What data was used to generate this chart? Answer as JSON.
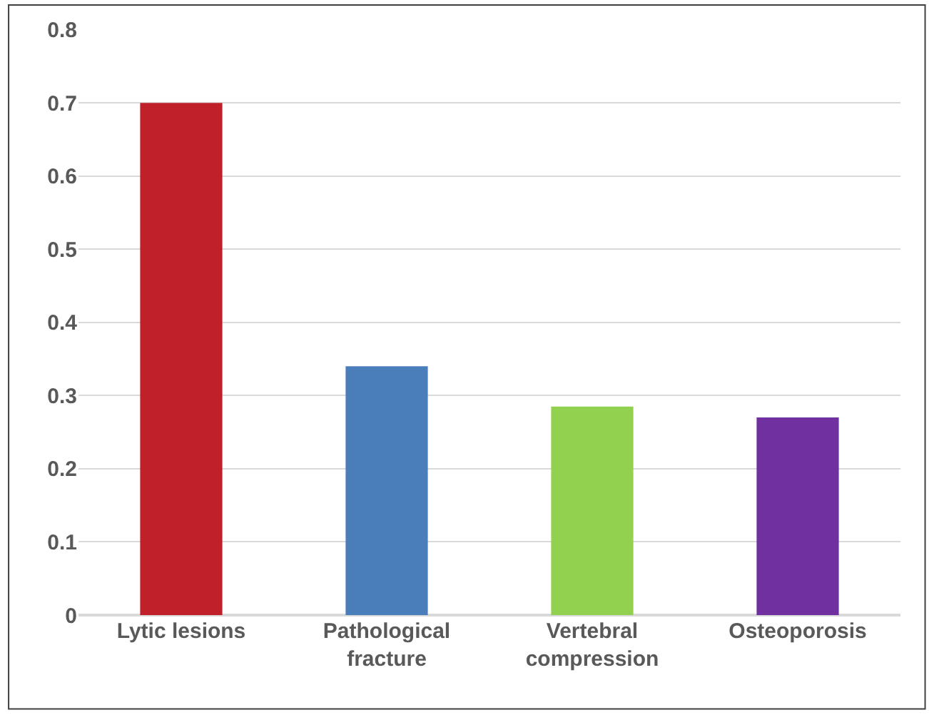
{
  "chart_data": {
    "type": "bar",
    "categories": [
      "Lytic lesions",
      "Pathological\nfracture",
      "Vertebral\ncompression",
      "Osteoporosis"
    ],
    "values": [
      0.7,
      0.34,
      0.285,
      0.27
    ],
    "colors": [
      "#c0202a",
      "#4a7ebb",
      "#92d050",
      "#7030a0"
    ],
    "ylim": [
      0,
      0.8
    ],
    "yticks": [
      0,
      0.1,
      0.2,
      0.3,
      0.4,
      0.5,
      0.6,
      0.7,
      0.8
    ],
    "grid": "y"
  }
}
